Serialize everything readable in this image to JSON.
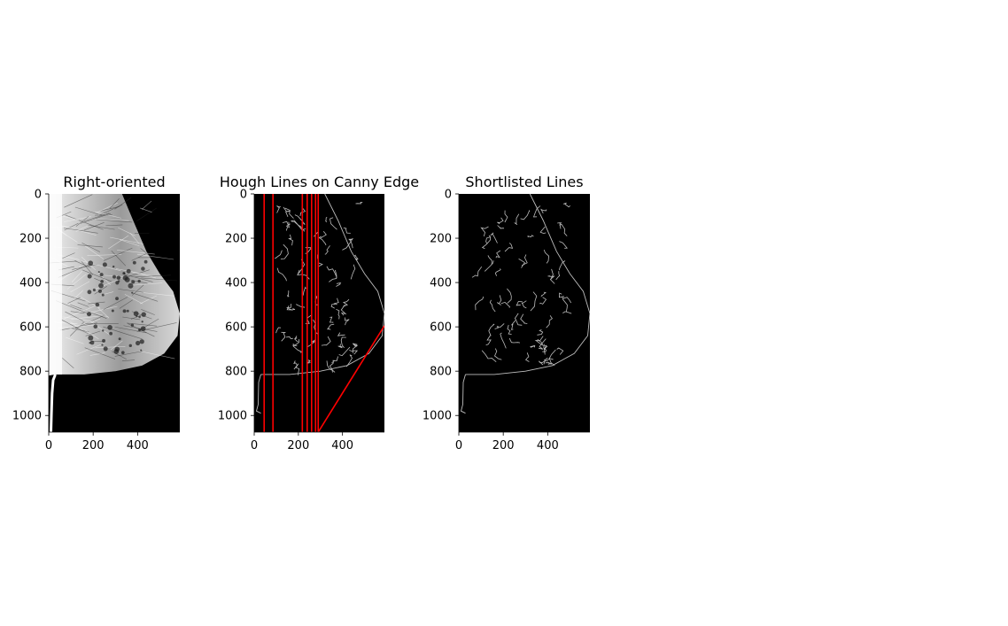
{
  "figure": {
    "background": "#ffffff"
  },
  "chart_data": [
    {
      "type": "image",
      "title": "Right-oriented",
      "xlabel": "",
      "ylabel": "",
      "xlim": [
        0,
        590
      ],
      "ylim": [
        1075,
        0
      ],
      "x_ticks": [
        0,
        200,
        400
      ],
      "y_ticks": [
        0,
        200,
        400,
        600,
        800,
        1000
      ],
      "grid": false,
      "image_description": "grayscale mammogram, breast tissue facing right on black background",
      "breast_outline": [
        [
          0,
          0
        ],
        [
          330,
          0
        ],
        [
          380,
          120
        ],
        [
          440,
          260
        ],
        [
          500,
          360
        ],
        [
          560,
          440
        ],
        [
          590,
          540
        ],
        [
          580,
          640
        ],
        [
          520,
          720
        ],
        [
          420,
          775
        ],
        [
          300,
          800
        ],
        [
          160,
          815
        ],
        [
          30,
          815
        ],
        [
          0,
          820
        ]
      ],
      "body_edge": [
        [
          30,
          815
        ],
        [
          20,
          840
        ],
        [
          15,
          900
        ],
        [
          12,
          1000
        ],
        [
          10,
          1075
        ]
      ]
    },
    {
      "type": "image",
      "title": "Hough Lines on Canny Edge",
      "xlabel": "",
      "ylabel": "",
      "xlim": [
        0,
        590
      ],
      "ylim": [
        1075,
        0
      ],
      "x_ticks": [
        0,
        200,
        400
      ],
      "y_ticks": [
        0,
        200,
        400,
        600,
        800,
        1000
      ],
      "grid": false,
      "line_color": "#ff0000",
      "hough_lines": [
        [
          [
            45,
            0
          ],
          [
            45,
            1075
          ]
        ],
        [
          [
            85,
            0
          ],
          [
            85,
            1075
          ]
        ],
        [
          [
            218,
            0
          ],
          [
            218,
            1075
          ]
        ],
        [
          [
            240,
            0
          ],
          [
            240,
            1075
          ]
        ],
        [
          [
            260,
            0
          ],
          [
            260,
            1075
          ]
        ],
        [
          [
            278,
            0
          ],
          [
            278,
            1075
          ]
        ],
        [
          [
            290,
            0
          ],
          [
            290,
            1075
          ]
        ],
        [
          [
            290,
            1075
          ],
          [
            590,
            595
          ]
        ]
      ],
      "edge_outline": [
        [
          320,
          0
        ],
        [
          380,
          120
        ],
        [
          440,
          260
        ],
        [
          500,
          360
        ],
        [
          560,
          440
        ],
        [
          590,
          540
        ],
        [
          580,
          640
        ],
        [
          520,
          720
        ],
        [
          420,
          775
        ],
        [
          300,
          800
        ],
        [
          160,
          815
        ],
        [
          30,
          815
        ]
      ]
    },
    {
      "type": "image",
      "title": "Shortlisted Lines",
      "xlabel": "",
      "ylabel": "",
      "xlim": [
        0,
        590
      ],
      "ylim": [
        1075,
        0
      ],
      "x_ticks": [
        0,
        200,
        400
      ],
      "y_ticks": [
        0,
        200,
        400,
        600,
        800,
        1000
      ],
      "grid": false,
      "hough_lines": [],
      "edge_outline": [
        [
          320,
          0
        ],
        [
          380,
          120
        ],
        [
          440,
          260
        ],
        [
          500,
          360
        ],
        [
          560,
          440
        ],
        [
          590,
          540
        ],
        [
          580,
          640
        ],
        [
          520,
          720
        ],
        [
          420,
          775
        ],
        [
          300,
          800
        ],
        [
          160,
          815
        ],
        [
          30,
          815
        ]
      ]
    }
  ]
}
